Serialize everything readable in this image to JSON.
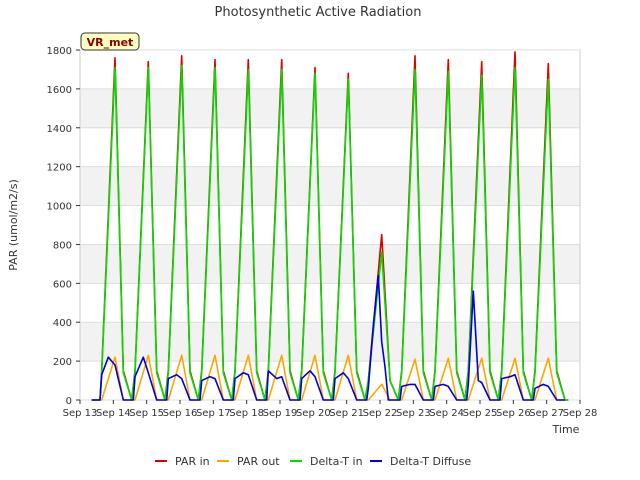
{
  "chart_data": {
    "type": "line",
    "title": "Photosynthetic Active Radiation",
    "xlabel": "Time",
    "ylabel": "PAR (umol/m2/s)",
    "ylim": [
      0,
      1800
    ],
    "xlim": [
      13,
      28
    ],
    "yticks": [
      0,
      200,
      400,
      600,
      800,
      1000,
      1200,
      1400,
      1600,
      1800
    ],
    "xtick_values": [
      13,
      14,
      15,
      16,
      17,
      18,
      19,
      20,
      21,
      22,
      23,
      24,
      25,
      26,
      27,
      28
    ],
    "xtick_labels": [
      "Sep 13",
      "Sep 14",
      "Sep 15",
      "Sep 16",
      "Sep 17",
      "Sep 18",
      "Sep 19",
      "Sep 20",
      "Sep 21",
      "Sep 22",
      "Sep 23",
      "Sep 24",
      "Sep 25",
      "Sep 26",
      "Sep 27",
      "Sep 28"
    ],
    "grid": "horizontal bands",
    "station_label": "VR_met",
    "legend_position": "bottom",
    "series": [
      {
        "name": "PAR in",
        "color": "#dd0000",
        "x": [
          13.35,
          13.6,
          13.65,
          14.05,
          14.3,
          14.55,
          14.65,
          15.05,
          15.3,
          15.55,
          15.65,
          16.05,
          16.3,
          16.55,
          16.65,
          17.05,
          17.3,
          17.55,
          17.65,
          18.05,
          18.3,
          18.55,
          18.65,
          19.05,
          19.3,
          19.55,
          19.65,
          20.05,
          20.3,
          20.55,
          20.65,
          21.05,
          21.3,
          21.55,
          21.65,
          22.05,
          22.3,
          22.55,
          22.65,
          23.05,
          23.3,
          23.55,
          23.65,
          24.05,
          24.3,
          24.55,
          24.65,
          25.05,
          25.3,
          25.55,
          25.65,
          26.05,
          26.3,
          26.55,
          26.65,
          27.05,
          27.3,
          27.55,
          27.65
        ],
        "y": [
          0,
          0,
          150,
          1760,
          150,
          0,
          150,
          1740,
          150,
          0,
          150,
          1770,
          150,
          0,
          150,
          1750,
          150,
          0,
          150,
          1750,
          150,
          0,
          150,
          1750,
          150,
          0,
          150,
          1710,
          150,
          0,
          150,
          1680,
          150,
          0,
          100,
          850,
          100,
          0,
          150,
          1770,
          150,
          0,
          150,
          1750,
          150,
          0,
          150,
          1740,
          150,
          0,
          150,
          1790,
          150,
          0,
          150,
          1730,
          150,
          0,
          0
        ]
      },
      {
        "name": "PAR out",
        "color": "#ffa500",
        "x": [
          13.35,
          13.65,
          14.05,
          14.3,
          14.55,
          14.65,
          15.05,
          15.3,
          15.55,
          15.65,
          16.05,
          16.3,
          16.55,
          16.65,
          17.05,
          17.3,
          17.55,
          17.65,
          18.05,
          18.3,
          18.55,
          18.65,
          19.05,
          19.3,
          19.55,
          19.65,
          20.05,
          20.3,
          20.55,
          20.65,
          21.05,
          21.3,
          21.55,
          21.65,
          22.05,
          22.3,
          22.55,
          22.65,
          23.05,
          23.3,
          23.55,
          23.65,
          24.05,
          24.3,
          24.55,
          24.65,
          25.05,
          25.3,
          25.55,
          25.65,
          26.05,
          26.3,
          26.55,
          26.65,
          27.05,
          27.3,
          27.55
        ],
        "y": [
          0,
          0,
          220,
          0,
          0,
          0,
          230,
          0,
          0,
          0,
          230,
          0,
          0,
          0,
          230,
          0,
          0,
          0,
          230,
          0,
          0,
          0,
          230,
          0,
          0,
          0,
          230,
          0,
          0,
          0,
          230,
          0,
          0,
          0,
          80,
          0,
          0,
          0,
          210,
          0,
          0,
          0,
          215,
          0,
          0,
          0,
          215,
          0,
          0,
          0,
          215,
          0,
          0,
          0,
          215,
          0,
          0
        ]
      },
      {
        "name": "Delta-T in",
        "color": "#00dd00",
        "x": [
          13.35,
          13.6,
          13.65,
          14.05,
          14.3,
          14.55,
          14.65,
          15.05,
          15.3,
          15.55,
          15.65,
          16.05,
          16.3,
          16.55,
          16.65,
          17.05,
          17.3,
          17.55,
          17.65,
          18.05,
          18.3,
          18.55,
          18.65,
          19.05,
          19.3,
          19.55,
          19.65,
          20.05,
          20.3,
          20.55,
          20.65,
          21.05,
          21.3,
          21.55,
          21.65,
          22.05,
          22.3,
          22.55,
          22.65,
          23.05,
          23.3,
          23.55,
          23.65,
          24.05,
          24.3,
          24.55,
          24.65,
          25.05,
          25.3,
          25.55,
          25.65,
          26.05,
          26.3,
          26.55,
          26.65,
          27.05,
          27.3,
          27.55,
          27.65
        ],
        "y": [
          0,
          0,
          140,
          1710,
          140,
          0,
          140,
          1710,
          140,
          0,
          140,
          1720,
          140,
          0,
          140,
          1710,
          140,
          0,
          140,
          1700,
          140,
          0,
          140,
          1700,
          140,
          0,
          140,
          1680,
          140,
          0,
          140,
          1650,
          140,
          0,
          100,
          760,
          100,
          0,
          140,
          1700,
          140,
          0,
          140,
          1690,
          140,
          0,
          140,
          1670,
          140,
          0,
          140,
          1710,
          140,
          0,
          140,
          1650,
          140,
          0,
          0
        ]
      },
      {
        "name": "Delta-T Diffuse",
        "color": "#0000dd",
        "x": [
          13.35,
          13.6,
          13.65,
          13.85,
          13.95,
          14.05,
          14.3,
          14.55,
          14.6,
          14.65,
          14.9,
          15.05,
          15.3,
          15.55,
          15.6,
          15.65,
          15.9,
          16.05,
          16.3,
          16.55,
          16.6,
          16.65,
          16.9,
          17.05,
          17.3,
          17.55,
          17.6,
          17.65,
          17.9,
          18.05,
          18.3,
          18.55,
          18.6,
          18.65,
          18.9,
          19.05,
          19.3,
          19.55,
          19.6,
          19.65,
          19.9,
          20.05,
          20.3,
          20.55,
          20.6,
          20.65,
          20.9,
          21.05,
          21.3,
          21.55,
          21.6,
          21.65,
          21.8,
          21.95,
          22.05,
          22.15,
          22.25,
          22.35,
          22.55,
          22.6,
          22.65,
          22.9,
          23.05,
          23.3,
          23.55,
          23.6,
          23.65,
          23.9,
          24.05,
          24.3,
          24.55,
          24.6,
          24.65,
          24.8,
          24.95,
          25.05,
          25.3,
          25.55,
          25.6,
          25.65,
          25.9,
          26.05,
          26.3,
          26.55,
          26.6,
          26.65,
          26.9,
          27.05,
          27.3,
          27.55
        ],
        "y": [
          0,
          0,
          130,
          220,
          200,
          180,
          0,
          0,
          0,
          120,
          220,
          140,
          0,
          0,
          0,
          110,
          130,
          110,
          0,
          0,
          0,
          100,
          120,
          110,
          0,
          0,
          0,
          110,
          140,
          130,
          0,
          0,
          0,
          150,
          110,
          120,
          0,
          0,
          0,
          110,
          150,
          120,
          0,
          0,
          0,
          110,
          140,
          110,
          0,
          0,
          0,
          60,
          380,
          640,
          300,
          170,
          0,
          0,
          0,
          0,
          70,
          80,
          80,
          0,
          0,
          0,
          70,
          80,
          70,
          0,
          0,
          0,
          80,
          560,
          100,
          90,
          0,
          0,
          0,
          110,
          120,
          130,
          0,
          0,
          0,
          60,
          80,
          70,
          0,
          0
        ]
      }
    ]
  }
}
